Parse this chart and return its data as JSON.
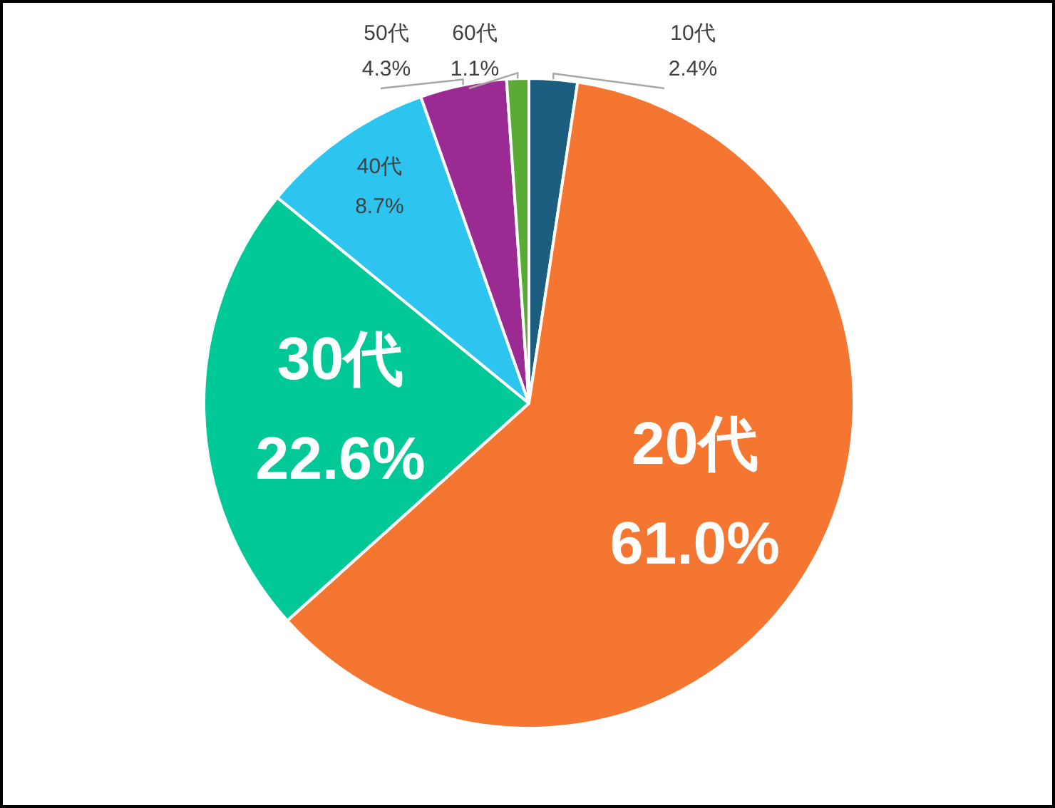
{
  "chart_data": {
    "type": "pie",
    "categories": [
      "10代",
      "20代",
      "30代",
      "40代",
      "50代",
      "60代"
    ],
    "values": [
      2.4,
      61.0,
      22.6,
      8.7,
      4.3,
      1.1
    ],
    "colors": [
      "#1b5e80",
      "#f47630",
      "#00c896",
      "#2ec4f0",
      "#9c2a93",
      "#5aab36"
    ],
    "value_labels": [
      "2.4%",
      "61.0%",
      "22.6%",
      "8.7%",
      "4.3%",
      "1.1%"
    ]
  }
}
